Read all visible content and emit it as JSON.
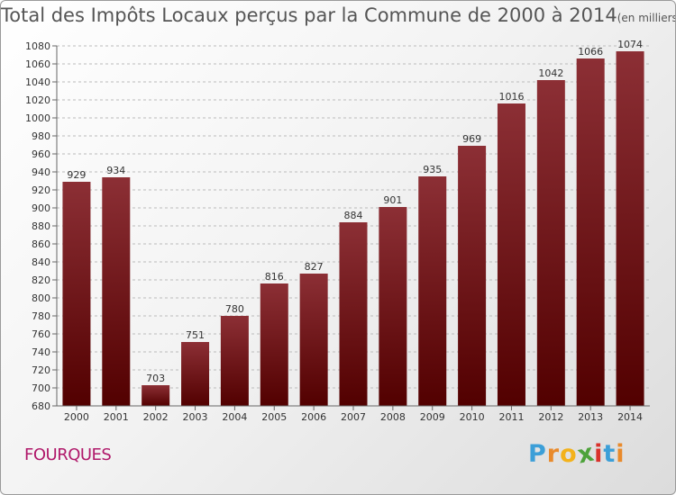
{
  "title": "Total des Impôts Locaux perçus par la Commune de 2000 à 2014",
  "unit_note": "(en milliers d'€)",
  "commune": "FOURQUES",
  "logo": {
    "letters": [
      "P",
      "r",
      "o",
      "x",
      "i",
      "t",
      "i"
    ],
    "colors": [
      "#3c9fd8",
      "#e98a2b",
      "#f3b21b",
      "#4da23a",
      "#d9312b",
      "#3c9fd8",
      "#e98a2b"
    ]
  },
  "colors": {
    "bar_top": "#8c2f35",
    "bar_bottom": "#520000",
    "title": "#555555",
    "commune": "#b0186a"
  },
  "chart_data": {
    "type": "bar",
    "title": "Total des Impôts Locaux perçus par la Commune de 2000 à 2014",
    "xlabel": "",
    "ylabel": "",
    "ylim": [
      680,
      1080
    ],
    "yticks": [
      680,
      700,
      720,
      740,
      760,
      780,
      800,
      820,
      840,
      860,
      880,
      900,
      920,
      940,
      960,
      980,
      1000,
      1020,
      1040,
      1060,
      1080
    ],
    "categories": [
      "2000",
      "2001",
      "2002",
      "2003",
      "2004",
      "2005",
      "2006",
      "2007",
      "2008",
      "2009",
      "2010",
      "2011",
      "2012",
      "2013",
      "2014"
    ],
    "values": [
      929,
      934,
      703,
      751,
      780,
      816,
      827,
      884,
      901,
      935,
      969,
      1016,
      1042,
      1066,
      1074
    ],
    "grid": "horizontal dashed"
  }
}
